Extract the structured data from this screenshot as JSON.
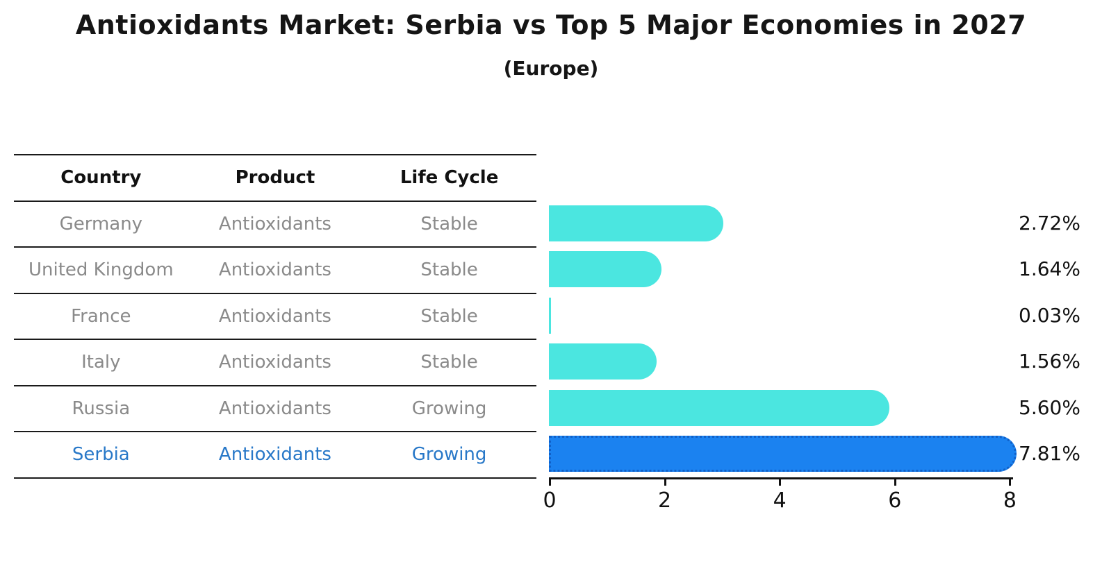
{
  "header": {
    "title": "Antioxidants Market: Serbia vs Top 5 Major Economies in 2027",
    "subtitle": "(Europe)"
  },
  "table": {
    "columns": [
      "Country",
      "Product",
      "Life Cycle"
    ],
    "rows": [
      {
        "country": "Germany",
        "product": "Antioxidants",
        "life_cycle": "Stable",
        "highlighted": false
      },
      {
        "country": "United Kingdom",
        "product": "Antioxidants",
        "life_cycle": "Stable",
        "highlighted": false
      },
      {
        "country": "France",
        "product": "Antioxidants",
        "life_cycle": "Stable",
        "highlighted": false
      },
      {
        "country": "Italy",
        "product": "Antioxidants",
        "life_cycle": "Stable",
        "highlighted": false
      },
      {
        "country": "Russia",
        "product": "Antioxidants",
        "life_cycle": "Growing",
        "highlighted": false
      },
      {
        "country": "Serbia",
        "product": "Antioxidants",
        "life_cycle": "Growing",
        "highlighted": true
      }
    ]
  },
  "chart_data": {
    "type": "bar",
    "orientation": "horizontal",
    "title": "Antioxidants Market: Serbia vs Top 5 Major Economies in 2027",
    "subtitle": "(Europe)",
    "categories": [
      "Germany",
      "United Kingdom",
      "France",
      "Italy",
      "Russia",
      "Serbia"
    ],
    "values": [
      2.72,
      1.64,
      0.03,
      1.56,
      5.6,
      7.81
    ],
    "value_labels": [
      "2.72%",
      "1.64%",
      "0.03%",
      "1.56%",
      "5.60%",
      "7.81%"
    ],
    "highlighted_category": "Serbia",
    "x_ticks": [
      0,
      2,
      4,
      6,
      8
    ],
    "xlim": [
      0,
      8
    ],
    "grid": false,
    "legend": false,
    "colors": {
      "bar_default": "#4BE6E0",
      "bar_highlight": "#1B82F0",
      "bar_highlight_border": "#1060C8",
      "highlight_text": "#2878C8",
      "row_text": "#8A8A8A",
      "header_text": "#111111"
    }
  }
}
